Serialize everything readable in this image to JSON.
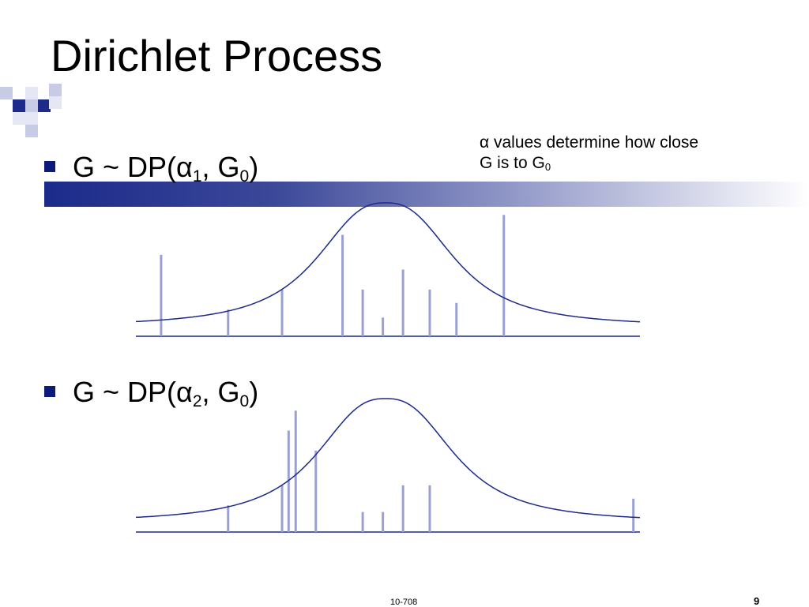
{
  "slide": {
    "title": "Dirichlet Process",
    "footer": "10-708",
    "page_number": "9",
    "accent_color": "#0d1a7a",
    "bar_color": "#9aa0d2"
  },
  "bullets": [
    {
      "prefix": "G ~ DP(α",
      "alpha_sub": "1",
      "mid": ", G",
      "g_sub": "0",
      "suffix": ")"
    },
    {
      "prefix": "G ~ DP(α",
      "alpha_sub": "2",
      "mid": ", G",
      "g_sub": "0",
      "suffix": ")"
    }
  ],
  "note": {
    "line1": "α values determine how close",
    "line2_prefix": "G is to G",
    "line2_sub": "0"
  },
  "diagram": {
    "curve_color": "#1c2a8a",
    "top_sticks": [
      {
        "x": 0.05,
        "h": 0.61
      },
      {
        "x": 0.183,
        "h": 0.2
      },
      {
        "x": 0.29,
        "h": 0.35
      },
      {
        "x": 0.41,
        "h": 0.76
      },
      {
        "x": 0.45,
        "h": 0.35
      },
      {
        "x": 0.49,
        "h": 0.14
      },
      {
        "x": 0.53,
        "h": 0.5
      },
      {
        "x": 0.583,
        "h": 0.35
      },
      {
        "x": 0.636,
        "h": 0.25
      },
      {
        "x": 0.73,
        "h": 0.91
      }
    ],
    "bottom_sticks": [
      {
        "x": 0.183,
        "h": 0.2
      },
      {
        "x": 0.29,
        "h": 0.35
      },
      {
        "x": 0.303,
        "h": 0.76
      },
      {
        "x": 0.317,
        "h": 0.91
      },
      {
        "x": 0.357,
        "h": 0.61
      },
      {
        "x": 0.45,
        "h": 0.15
      },
      {
        "x": 0.49,
        "h": 0.15
      },
      {
        "x": 0.53,
        "h": 0.35
      },
      {
        "x": 0.583,
        "h": 0.35
      },
      {
        "x": 0.987,
        "h": 0.25
      }
    ]
  }
}
